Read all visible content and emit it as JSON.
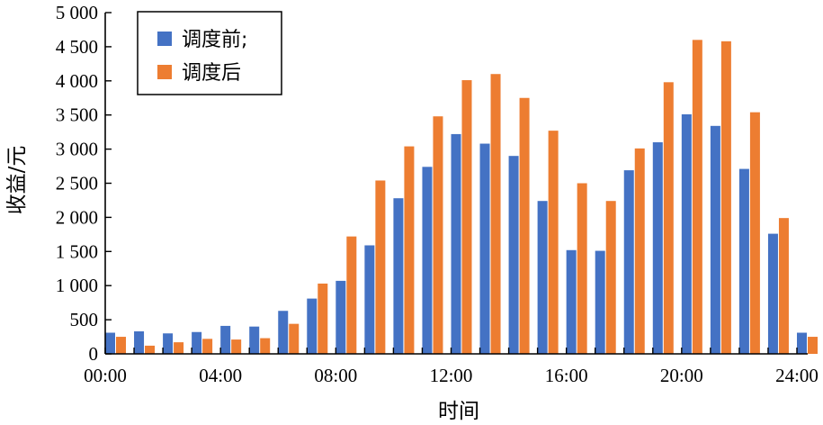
{
  "chart_data": {
    "type": "bar",
    "xlabel": "时间",
    "ylabel": "收益/元",
    "ylim": [
      0,
      5000
    ],
    "yticks": [
      {
        "value": 0,
        "label": "0"
      },
      {
        "value": 500,
        "label": "500"
      },
      {
        "value": 1000,
        "label": "1 000"
      },
      {
        "value": 1500,
        "label": "1 500"
      },
      {
        "value": 2000,
        "label": "2 000"
      },
      {
        "value": 2500,
        "label": "2 500"
      },
      {
        "value": 3000,
        "label": "3 000"
      },
      {
        "value": 3500,
        "label": "3 500"
      },
      {
        "value": 4000,
        "label": "4 000"
      },
      {
        "value": 4500,
        "label": "4 500"
      },
      {
        "value": 5000,
        "label": "5 000"
      }
    ],
    "xlim": [
      0,
      24
    ],
    "xticks": [
      {
        "value": 0,
        "label": "00:00"
      },
      {
        "value": 4,
        "label": "04:00"
      },
      {
        "value": 8,
        "label": "08:00"
      },
      {
        "value": 12,
        "label": "12:00"
      },
      {
        "value": 16,
        "label": "16:00"
      },
      {
        "value": 20,
        "label": "20:00"
      },
      {
        "value": 24,
        "label": "24:00"
      }
    ],
    "x": [
      0,
      1,
      2,
      3,
      4,
      5,
      6,
      7,
      8,
      9,
      10,
      11,
      12,
      13,
      14,
      15,
      16,
      17,
      18,
      19,
      20,
      21,
      22,
      23,
      24
    ],
    "series": [
      {
        "name": "调度前;",
        "color": "#4472C4",
        "values": [
          310,
          330,
          300,
          320,
          410,
          400,
          630,
          810,
          1070,
          1590,
          2280,
          2740,
          3220,
          3080,
          2900,
          2240,
          1520,
          1510,
          2690,
          3100,
          3510,
          3340,
          2710,
          1760,
          310
        ]
      },
      {
        "name": "调度后",
        "color": "#ED7D31",
        "values": [
          250,
          120,
          170,
          220,
          210,
          230,
          440,
          1030,
          1720,
          2540,
          3040,
          3480,
          4010,
          4100,
          3750,
          3270,
          2500,
          2240,
          3010,
          3980,
          4600,
          4580,
          3540,
          1990,
          250
        ]
      }
    ],
    "legend": {
      "position": "top-left",
      "entries": [
        "调度前;",
        "调度后"
      ]
    },
    "grid": false
  }
}
